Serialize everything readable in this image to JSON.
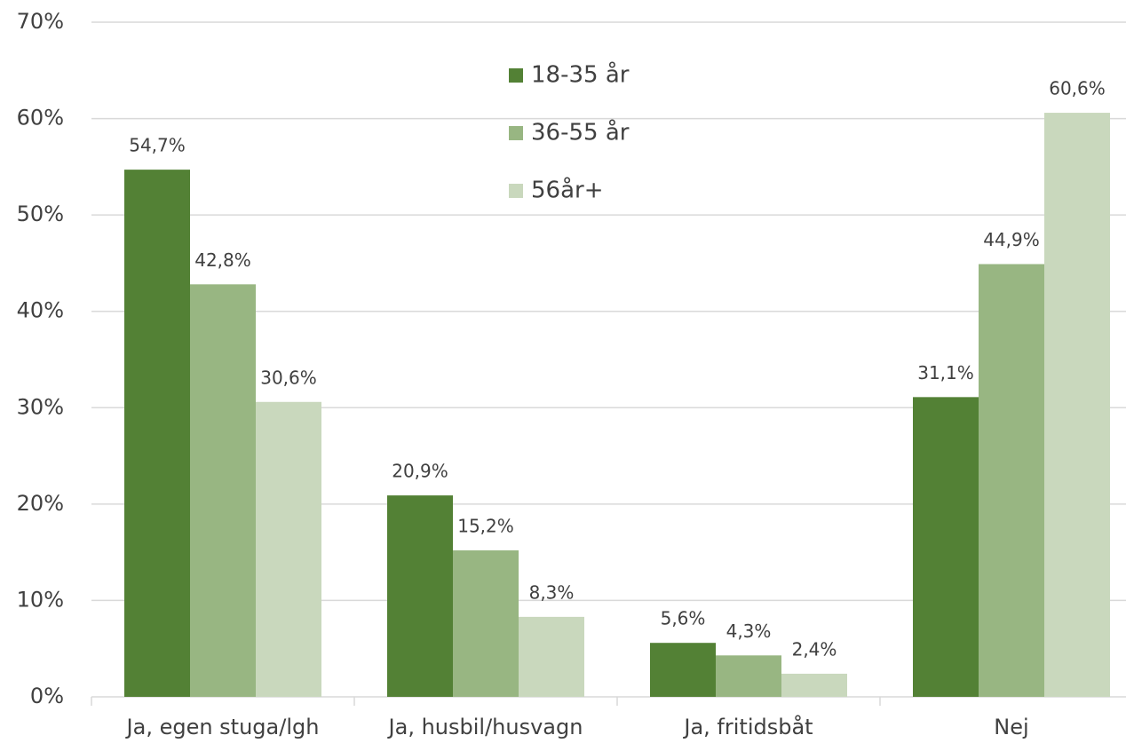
{
  "chart_data": {
    "type": "bar",
    "categories": [
      "Ja, egen stuga/lgh",
      "Ja, husbil/husvagn",
      "Ja, fritidsbåt",
      "Nej"
    ],
    "series": [
      {
        "name": "18-35 år",
        "color": "#538135",
        "values": [
          54.7,
          20.9,
          5.6,
          31.1
        ],
        "value_labels": [
          "54,7%",
          "20,9%",
          "5,6%",
          "31,1%"
        ]
      },
      {
        "name": "36-55 år",
        "color": "#98b682",
        "values": [
          42.8,
          15.2,
          4.3,
          44.9
        ],
        "value_labels": [
          "42,8%",
          "15,2%",
          "4,3%",
          "44,9%"
        ]
      },
      {
        "name": "56år+",
        "color": "#c9d8bd",
        "values": [
          30.6,
          8.3,
          2.4,
          60.6
        ],
        "value_labels": [
          "30,6%",
          "8,3%",
          "2,4%",
          "60,6%"
        ]
      }
    ],
    "ylim": [
      0,
      70
    ],
    "yticks": [
      {
        "value": 0,
        "label": "0%"
      },
      {
        "value": 10,
        "label": "10%"
      },
      {
        "value": 20,
        "label": "20%"
      },
      {
        "value": 30,
        "label": "30%"
      },
      {
        "value": 40,
        "label": "40%"
      },
      {
        "value": 50,
        "label": "50%"
      },
      {
        "value": 60,
        "label": "60%"
      },
      {
        "value": 70,
        "label": "70%"
      }
    ],
    "grid": true
  }
}
